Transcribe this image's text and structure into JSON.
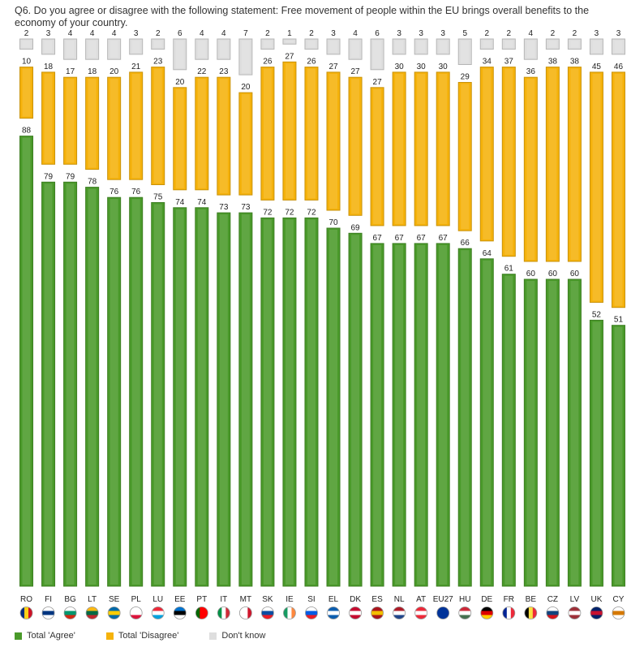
{
  "title": "Q6. Do you agree or disagree with the following statement: Free movement of people within the EU brings overall benefits to the economy of your country.",
  "colors": {
    "agree": "#4a9a2a",
    "disagree": "#f5b20b",
    "dontknow": "#dedede"
  },
  "chart_data": {
    "type": "bar",
    "stacked": true,
    "categories": [
      "RO",
      "FI",
      "BG",
      "LT",
      "SE",
      "PL",
      "LU",
      "EE",
      "PT",
      "IT",
      "MT",
      "SK",
      "IE",
      "SI",
      "EL",
      "DK",
      "ES",
      "NL",
      "AT",
      "EU27",
      "HU",
      "DE",
      "FR",
      "BE",
      "CZ",
      "LV",
      "UK",
      "CY"
    ],
    "series": [
      {
        "name": "Total 'Agree'",
        "color": "#4a9a2a",
        "values": [
          88,
          79,
          79,
          78,
          76,
          76,
          75,
          74,
          74,
          73,
          73,
          72,
          72,
          72,
          70,
          69,
          67,
          67,
          67,
          67,
          66,
          64,
          61,
          60,
          60,
          60,
          52,
          51
        ]
      },
      {
        "name": "Total 'Disagree'",
        "color": "#f5b20b",
        "values": [
          10,
          18,
          17,
          18,
          20,
          21,
          23,
          20,
          22,
          23,
          20,
          26,
          27,
          26,
          27,
          27,
          27,
          30,
          30,
          30,
          29,
          34,
          37,
          36,
          38,
          38,
          45,
          46
        ]
      },
      {
        "name": "Don't know",
        "color": "#dedede",
        "values": [
          2,
          3,
          4,
          4,
          4,
          3,
          2,
          6,
          4,
          4,
          7,
          2,
          1,
          2,
          3,
          4,
          6,
          3,
          3,
          3,
          5,
          2,
          2,
          4,
          2,
          2,
          3,
          3
        ]
      }
    ],
    "ylim": [
      0,
      100
    ],
    "legend_position": "bottom-left",
    "grid": false
  },
  "legend": [
    {
      "label": "Total 'Agree'",
      "color": "#4a9a2a"
    },
    {
      "label": "Total 'Disagree'",
      "color": "#f5b20b"
    },
    {
      "label": "Don't know",
      "color": "#dedede"
    }
  ]
}
